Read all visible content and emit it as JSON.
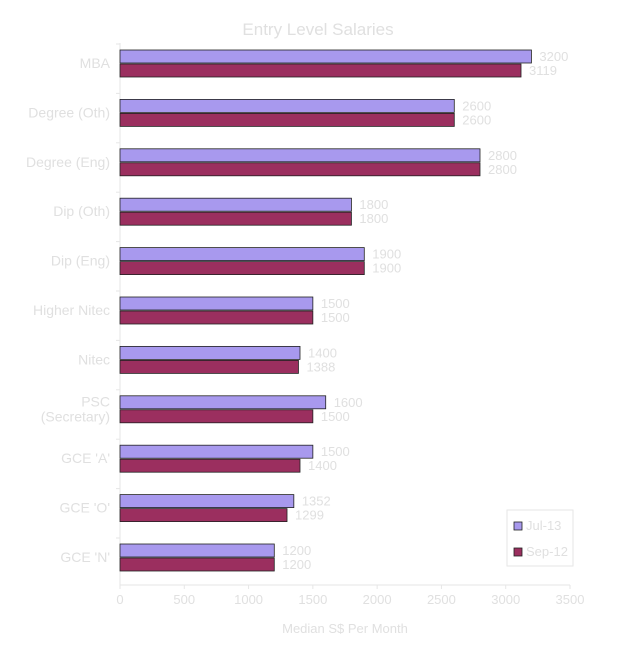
{
  "chart_data": {
    "type": "bar",
    "orientation": "horizontal",
    "title": "Entry Level Salaries",
    "xlabel": "Median S$ Per Month",
    "ylabel": "",
    "xlim": [
      0,
      3500
    ],
    "xticks": [
      0,
      500,
      1000,
      1500,
      2000,
      2500,
      3000,
      3500
    ],
    "categories": [
      [
        "MBA"
      ],
      [
        "Degree (Oth)"
      ],
      [
        "Degree (Eng)"
      ],
      [
        "Dip (Oth)"
      ],
      [
        "Dip (Eng)"
      ],
      [
        "Higher Nitec"
      ],
      [
        "Nitec"
      ],
      [
        "PSC",
        "(Secretary)"
      ],
      [
        "GCE 'A'"
      ],
      [
        "GCE 'O'"
      ],
      [
        "GCE 'N'"
      ]
    ],
    "series": [
      {
        "name": "Jul-13",
        "color": "#a899ee",
        "values": [
          3200,
          2600,
          2800,
          1800,
          1900,
          1500,
          1400,
          1600,
          1500,
          1352,
          1200
        ]
      },
      {
        "name": "Sep-12",
        "color": "#9b2f5f",
        "values": [
          3119,
          2600,
          2800,
          1800,
          1900,
          1500,
          1388,
          1500,
          1400,
          1299,
          1200
        ]
      }
    ],
    "grid": false,
    "legend_position": "bottom-right"
  }
}
